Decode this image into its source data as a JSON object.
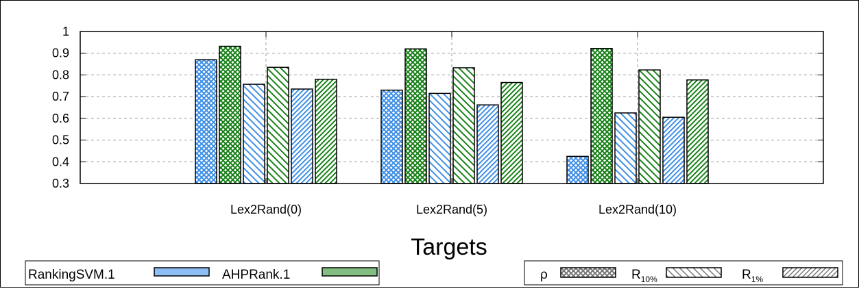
{
  "chart_data": {
    "type": "bar",
    "categories": [
      "Lex2Rand(0)",
      "Lex2Rand(5)",
      "Lex2Rand(10)"
    ],
    "xlabel": "Targets",
    "ylabel": "",
    "ylim": [
      0.3,
      1
    ],
    "yticks": [
      "0.3",
      "0.4",
      "0.5",
      "0.6",
      "0.7",
      "0.8",
      "0.9",
      "1"
    ],
    "grid": true,
    "series": [
      {
        "method": "RankingSVM.1",
        "metric": "ρ",
        "values": [
          0.87,
          0.73,
          0.425
        ]
      },
      {
        "method": "AHPRank.1",
        "metric": "ρ",
        "values": [
          0.932,
          0.92,
          0.922
        ]
      },
      {
        "method": "RankingSVM.1",
        "metric": "R10%",
        "values": [
          0.757,
          0.715,
          0.625
        ]
      },
      {
        "method": "AHPRank.1",
        "metric": "R10%",
        "values": [
          0.835,
          0.833,
          0.823
        ]
      },
      {
        "method": "RankingSVM.1",
        "metric": "R1%",
        "values": [
          0.735,
          0.662,
          0.605
        ]
      },
      {
        "method": "AHPRank.1",
        "metric": "R1%",
        "values": [
          0.78,
          0.765,
          0.777
        ]
      }
    ],
    "colors": {
      "RankingSVM.1": "#8dbdf5",
      "AHPRank.1": "#82be82",
      "RankingSVM.1_stroke": "#3d8ee6",
      "AHPRank.1_stroke": "#168016"
    },
    "legend_methods": {
      "placement": "bottom-left",
      "items": [
        "RankingSVM.1",
        "AHPRank.1"
      ]
    },
    "legend_metrics": {
      "placement": "bottom-right",
      "items": [
        {
          "main": "ρ",
          "sub": ""
        },
        {
          "main": "R",
          "sub": "10%"
        },
        {
          "main": "R",
          "sub": "1%"
        }
      ]
    }
  }
}
